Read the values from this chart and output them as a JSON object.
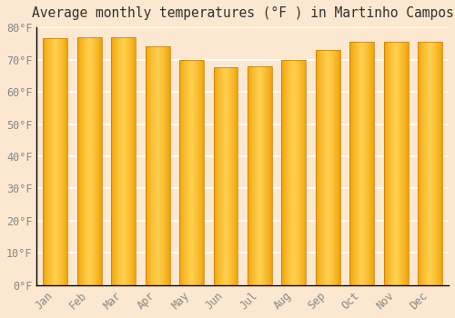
{
  "months": [
    "Jan",
    "Feb",
    "Mar",
    "Apr",
    "May",
    "Jun",
    "Jul",
    "Aug",
    "Sep",
    "Oct",
    "Nov",
    "Dec"
  ],
  "values": [
    76.5,
    77.0,
    77.0,
    74.0,
    70.0,
    67.5,
    68.0,
    70.0,
    73.0,
    75.5,
    75.5,
    75.5
  ],
  "title": "Average monthly temperatures (°F ) in Martinho Campos",
  "ylim": [
    0,
    80
  ],
  "yticks": [
    0,
    10,
    20,
    30,
    40,
    50,
    60,
    70,
    80
  ],
  "ytick_labels": [
    "0°F",
    "10°F",
    "20°F",
    "30°F",
    "40°F",
    "50°F",
    "60°F",
    "70°F",
    "80°F"
  ],
  "background_color": "#fce8d0",
  "grid_color": "#ffffff",
  "bar_color_left": "#F0A000",
  "bar_color_center": "#FFD050",
  "bar_color_right": "#F0A000",
  "bar_edge_color": "#C87800",
  "title_fontsize": 10.5,
  "tick_fontsize": 8.5,
  "tick_color": "#888888"
}
